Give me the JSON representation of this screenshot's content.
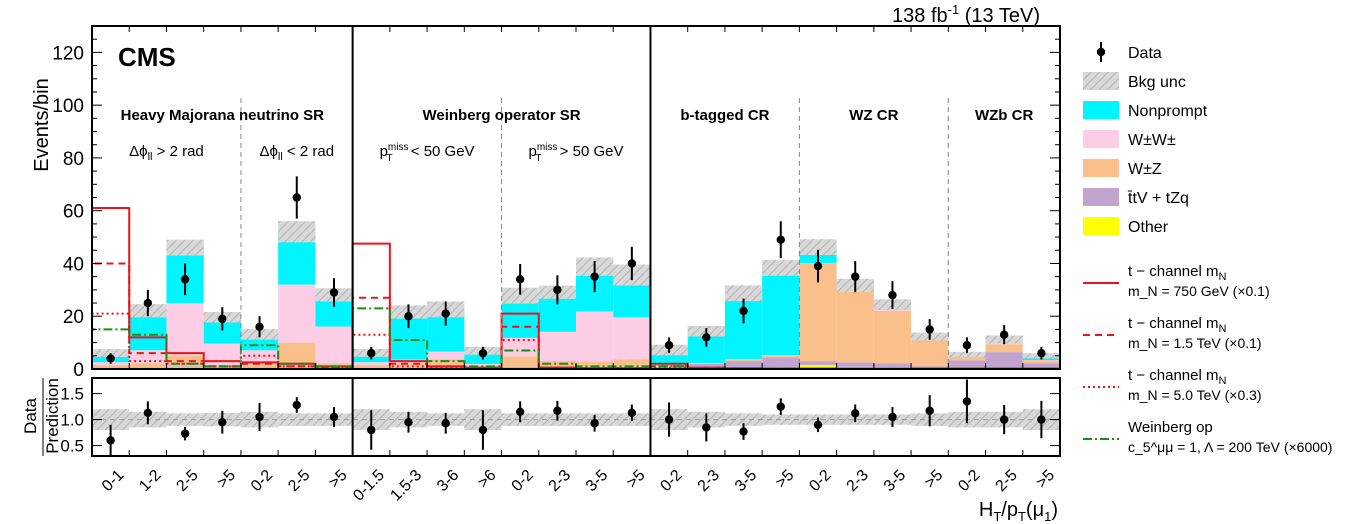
{
  "header": {
    "lumi": "138 fb",
    "lumi_sup": "-1",
    "energy": " (13 TeV)",
    "cms": "CMS"
  },
  "chart_data": {
    "type": "bar",
    "stacked": true,
    "ylabel": "Events/bin",
    "ratio_ylabel_num": "Data",
    "ratio_ylabel_den": "Prediction",
    "xlabel": "H_T/p_T(μ_1)",
    "ylim": [
      0,
      130
    ],
    "yticks": [
      0,
      20,
      40,
      60,
      80,
      100,
      120
    ],
    "ratio_ylim": [
      0.3,
      1.8
    ],
    "ratio_yticks": [
      0.5,
      1.0,
      1.5
    ],
    "ratio_ytick_labels": [
      "0.5",
      "1.0",
      "1.5"
    ],
    "categories": [
      "0-1",
      "1-2",
      "2-5",
      ">5",
      "0-2",
      "2-5",
      ">5",
      "0-1.5",
      "1.5-3",
      "3-6",
      ">6",
      "0-2",
      "2-3",
      "3-5",
      ">5",
      "0-2",
      "2-3",
      "3-5",
      ">5",
      "0-2",
      "2-3",
      "3-5",
      ">5",
      "0-2",
      "2-5",
      ">5"
    ],
    "regions": [
      {
        "label": "Heavy Majorana neutrino SR",
        "subregions": [
          "Δϕ_ll > 2 rad",
          "Δϕ_ll < 2 rad"
        ]
      },
      {
        "label": "Weinberg operator SR",
        "subregions": [
          "p_T^miss < 50 GeV",
          "p_T^miss > 50 GeV"
        ]
      },
      {
        "label": "b-tagged CR",
        "subregions": []
      },
      {
        "label": "WZ CR",
        "subregions": []
      },
      {
        "label": "WZb CR",
        "subregions": []
      }
    ],
    "series": [
      {
        "name": "Other",
        "color": "#ffff00",
        "values": [
          0.3,
          0.3,
          0.5,
          0.3,
          0.3,
          0.5,
          0.3,
          0.3,
          0.3,
          0.3,
          0.2,
          0.4,
          0.3,
          0.4,
          0.3,
          0.3,
          0.4,
          0.5,
          0.4,
          1.5,
          0.8,
          0.7,
          0.4,
          0.3,
          0.4,
          0.2
        ]
      },
      {
        "name": "t̄tV + tZq",
        "color": "#c2a5cf",
        "values": [
          0.3,
          0.3,
          0.5,
          0.3,
          0.3,
          0.5,
          0.3,
          0.3,
          0.3,
          0.3,
          0.2,
          0.4,
          0.3,
          0.4,
          0.3,
          0.5,
          1.5,
          2.5,
          4,
          1.5,
          1.7,
          1.4,
          0.6,
          3,
          6,
          2
        ]
      },
      {
        "name": "W±Z",
        "color": "#f9c08c",
        "values": [
          1,
          1.5,
          4,
          1,
          1.5,
          9,
          1.5,
          1,
          1.5,
          3,
          0.5,
          4,
          2.5,
          2,
          3,
          0.3,
          0.3,
          0.5,
          0.7,
          37,
          27,
          20,
          10,
          1.5,
          3,
          1
        ]
      },
      {
        "name": "W±W±",
        "color": "#fccde5",
        "values": [
          1,
          5,
          20,
          8,
          5,
          22,
          14,
          1,
          1.5,
          3,
          1,
          7,
          11,
          19,
          16,
          0.1,
          0.1,
          0.2,
          0.2,
          0.2,
          0.2,
          0.3,
          0.3,
          0.2,
          0.3,
          0.2
        ]
      },
      {
        "name": "Nonprompt",
        "color": "#00f5ff",
        "values": [
          3.4,
          15,
          21,
          10,
          6,
          20,
          12,
          3.5,
          18,
          16,
          5,
          16,
          15,
          17,
          16,
          6,
          12,
          25,
          33,
          6,
          2,
          2,
          1,
          0.5,
          1.5,
          1.6
        ]
      }
    ],
    "bkg_unc": [
      1.5,
      2.5,
      3,
      2,
      2,
      4,
      2.5,
      1.5,
      2.5,
      3,
      1.5,
      3,
      2.5,
      3.5,
      4,
      2,
      2,
      3,
      3,
      3,
      2.5,
      2,
      1.5,
      1,
      1.5,
      1
    ],
    "data": {
      "name": "Data",
      "values": [
        4,
        25,
        34,
        19,
        16,
        65,
        29,
        6,
        20,
        21,
        6,
        34,
        30,
        35,
        40,
        9,
        12,
        22,
        49,
        39,
        35,
        28,
        15,
        9,
        13,
        6
      ],
      "err": [
        2,
        5,
        6,
        4.4,
        4,
        8,
        5.4,
        2.4,
        4.5,
        4.6,
        2.4,
        5.8,
        5.5,
        5.9,
        6.3,
        3,
        3.5,
        4.7,
        7,
        6.2,
        5.9,
        5.3,
        3.9,
        3,
        3.6,
        2.4
      ]
    },
    "ratio": {
      "values": [
        0.6,
        1.13,
        0.73,
        0.95,
        1.05,
        1.28,
        1.05,
        0.8,
        0.95,
        0.93,
        0.8,
        1.15,
        1.17,
        0.93,
        1.13,
        1.0,
        0.85,
        0.77,
        1.25,
        0.9,
        1.12,
        1.05,
        1.17,
        1.35,
        1.0,
        1.0
      ],
      "err": [
        0.3,
        0.22,
        0.13,
        0.22,
        0.27,
        0.15,
        0.19,
        0.38,
        0.2,
        0.2,
        0.38,
        0.2,
        0.19,
        0.16,
        0.16,
        0.33,
        0.27,
        0.16,
        0.16,
        0.14,
        0.17,
        0.19,
        0.3,
        0.42,
        0.28,
        0.36
      ],
      "unc": [
        0.2,
        0.15,
        0.12,
        0.13,
        0.15,
        0.12,
        0.12,
        0.2,
        0.15,
        0.12,
        0.2,
        0.12,
        0.12,
        0.12,
        0.12,
        0.2,
        0.15,
        0.12,
        0.1,
        0.1,
        0.1,
        0.1,
        0.12,
        0.15,
        0.15,
        0.2
      ]
    },
    "signals": [
      {
        "legend1": "t − channel m",
        "legend1_sub": "N",
        "legend2": "m_N = 750 GeV (×0.1)",
        "color": "#e8151b",
        "dash": "",
        "values": [
          61,
          12,
          6,
          3,
          2.5,
          2,
          1,
          47.5,
          3,
          1,
          0.5,
          21,
          0.5,
          0.3,
          0.3,
          2,
          0.5,
          0.3,
          0.2,
          0.2,
          0.2,
          0.2,
          0.2,
          0.2,
          0.2,
          0.2
        ]
      },
      {
        "legend1": "t − channel m",
        "legend1_sub": "N",
        "legend2": "m_N = 1.5 TeV (×0.1)",
        "color": "#e8151b",
        "dash": "7,5",
        "values": [
          40,
          6,
          3,
          1,
          2,
          1,
          0.5,
          27,
          2,
          1,
          0.5,
          16,
          0.5,
          0.3,
          0.3,
          1,
          0.3,
          0.2,
          0.2,
          0.2,
          0.2,
          0.2,
          0.2,
          0.2,
          0.2,
          0.2
        ]
      },
      {
        "legend1": "t − channel m",
        "legend1_sub": "N",
        "legend2": "m_N = 5.0 TeV (×0.3)",
        "color": "#e8151b",
        "dash": "2,3",
        "values": [
          21,
          3,
          2,
          1,
          5,
          1,
          0.5,
          13,
          1,
          0.5,
          0.5,
          11,
          0.5,
          0.3,
          0.3,
          0.5,
          0.3,
          0.2,
          0.2,
          0.2,
          0.2,
          0.2,
          0.2,
          0.2,
          0.2,
          0.2
        ]
      },
      {
        "legend1": "Weinberg op",
        "legend1_sub": "",
        "legend2": "c_5^μμ = 1, Λ = 200 TeV (×6000)",
        "color": "#1a8c1a",
        "dash": "9,3,2,3",
        "values": [
          15,
          13,
          2,
          1,
          9,
          2,
          1,
          23,
          11,
          3,
          1,
          7,
          2,
          1,
          1,
          1,
          0.3,
          0.2,
          0.2,
          0.2,
          0.2,
          0.2,
          0.2,
          0.2,
          0.2,
          0.2
        ]
      }
    ],
    "legend": {
      "placement": "right",
      "data": "Data",
      "bkg_unc": "Bkg unc",
      "items": [
        "Nonprompt",
        "W±W±",
        "W±Z",
        "t̄tV + tZq",
        "Other"
      ]
    }
  }
}
